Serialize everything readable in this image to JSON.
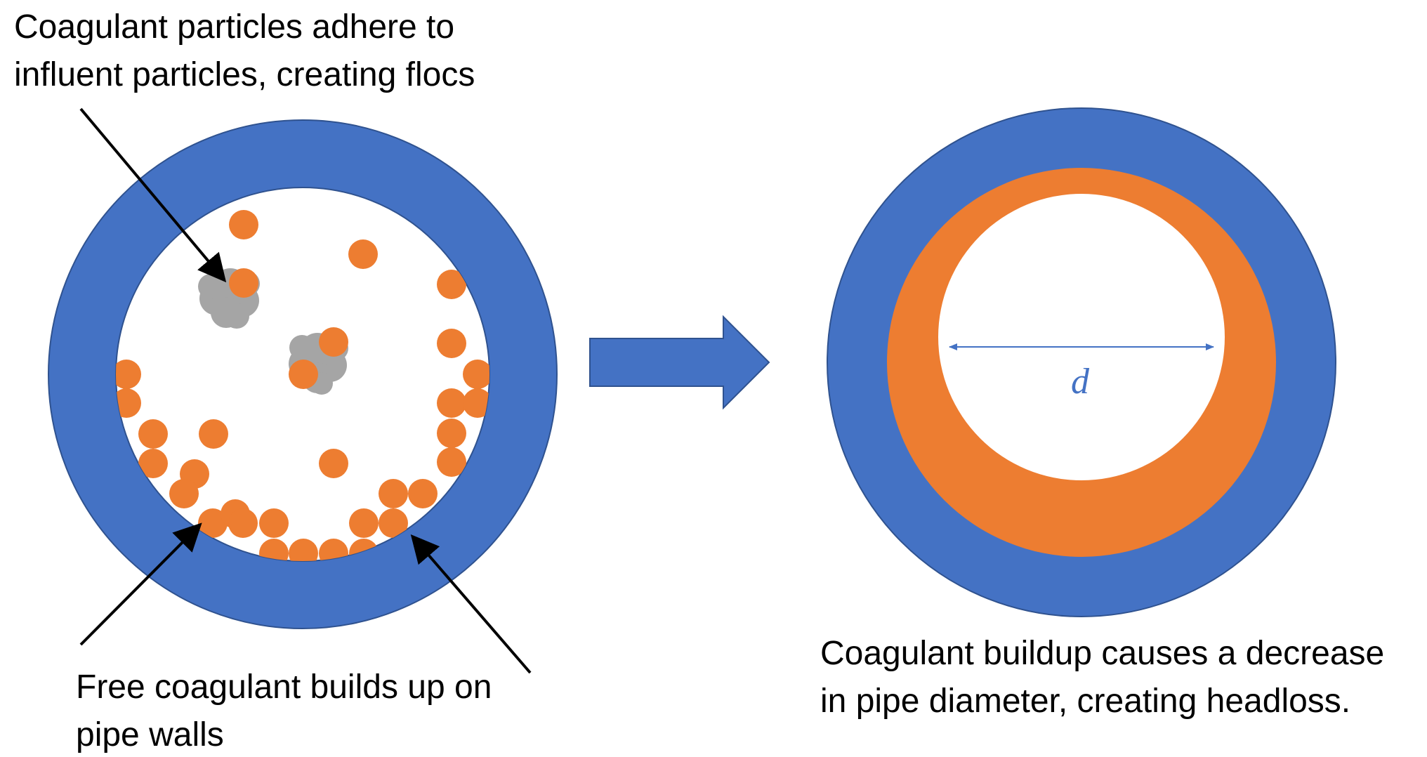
{
  "colors": {
    "pipe": "#4472C4",
    "pipe_edge": "#2F528F",
    "coagulant": "#ED7D31",
    "floc": "#A5A5A5",
    "arrow": "#000000",
    "dimension": "#4472C4"
  },
  "labels": {
    "top_left_line1": "Coagulant particles adhere to",
    "top_left_line2": "influent particles, creating flocs",
    "bottom_left_line1": "Free coagulant builds up on",
    "bottom_left_line2": "pipe walls",
    "bottom_right_line1": "Coagulant buildup causes a decrease",
    "bottom_right_line2": "in pipe diameter, creating headloss.",
    "diameter": "d"
  }
}
